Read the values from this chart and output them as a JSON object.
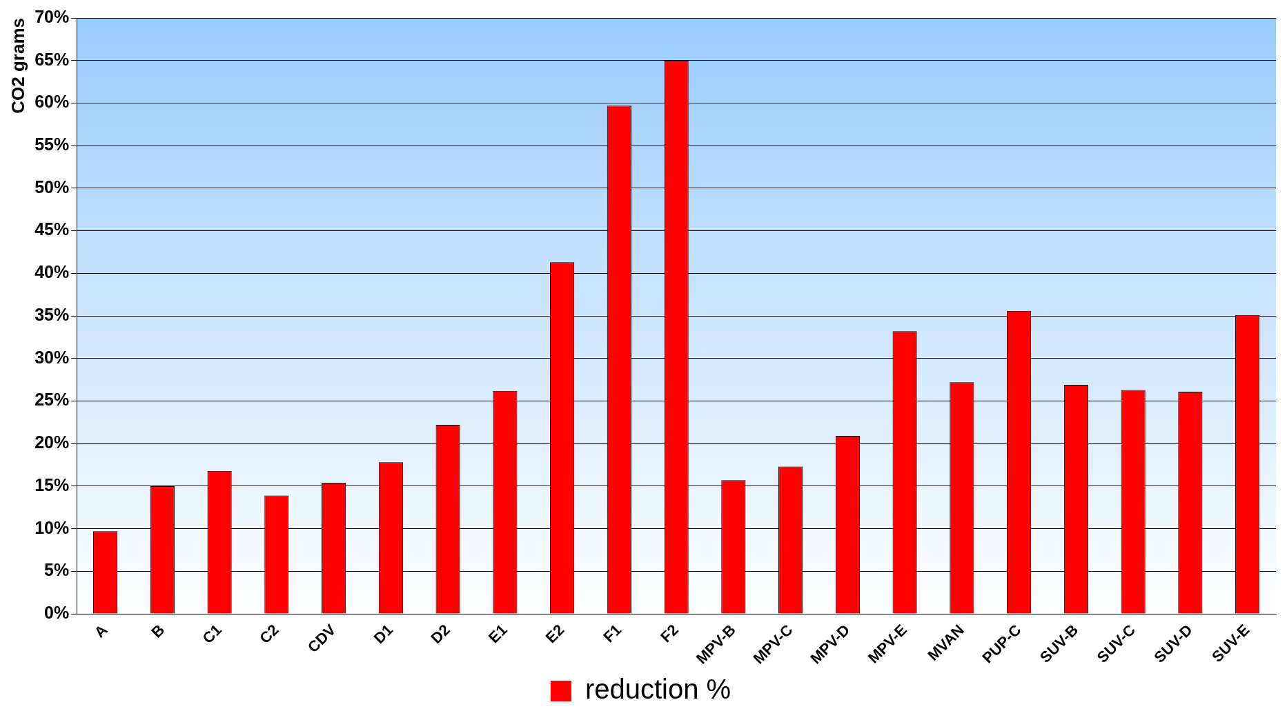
{
  "chart_data": {
    "type": "bar",
    "ylabel": "CO2 grams",
    "categories": [
      "A",
      "B",
      "C1",
      "C2",
      "CDV",
      "D1",
      "D2",
      "E1",
      "E2",
      "F1",
      "F2",
      "MPV-B",
      "MPV-C",
      "MPV-D",
      "MPV-E",
      "MVAN",
      "PUP-C",
      "SUV-B",
      "SUV-C",
      "SUV-D",
      "SUV-E"
    ],
    "series": [
      {
        "name": "reduction %",
        "color": "#ff0000",
        "values": [
          9.7,
          15.0,
          16.8,
          13.9,
          15.4,
          17.8,
          22.2,
          26.2,
          41.3,
          59.7,
          65.0,
          15.7,
          17.3,
          20.9,
          33.2,
          27.2,
          35.6,
          26.9,
          26.3,
          26.1,
          35.1
        ]
      }
    ],
    "ylim": [
      0,
      70
    ],
    "yticks": [
      {
        "value": 0,
        "label": "0%"
      },
      {
        "value": 5,
        "label": "5%"
      },
      {
        "value": 10,
        "label": "10%"
      },
      {
        "value": 15,
        "label": "15%"
      },
      {
        "value": 20,
        "label": "20%"
      },
      {
        "value": 25,
        "label": "25%"
      },
      {
        "value": 30,
        "label": "30%"
      },
      {
        "value": 35,
        "label": "35%"
      },
      {
        "value": 40,
        "label": "40%"
      },
      {
        "value": 45,
        "label": "45%"
      },
      {
        "value": 50,
        "label": "50%"
      },
      {
        "value": 55,
        "label": "55%"
      },
      {
        "value": 60,
        "label": "60%"
      },
      {
        "value": 65,
        "label": "65%"
      },
      {
        "value": 70,
        "label": "70%"
      }
    ],
    "grid": "y",
    "legend": "bottom"
  }
}
